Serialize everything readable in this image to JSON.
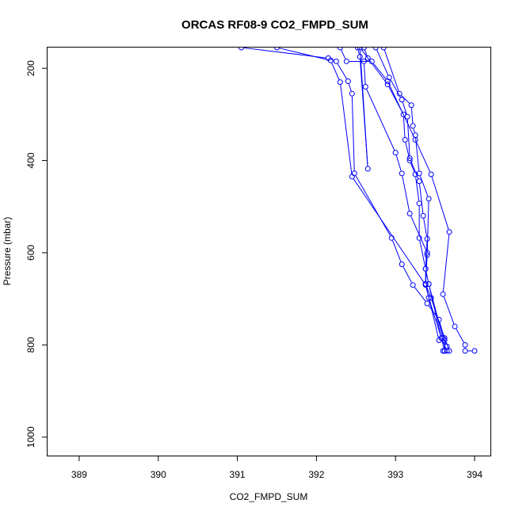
{
  "chart_data": {
    "type": "line",
    "title": "ORCAS RF08-9 CO2_FMPD_SUM",
    "xlabel": "CO2_FMPD_SUM",
    "ylabel": "Pressure (mbar)",
    "xlim": [
      388.6,
      394.2
    ],
    "ylim": [
      1040,
      155
    ],
    "y_inverted": true,
    "x_ticks": [
      389,
      390,
      391,
      392,
      393,
      394
    ],
    "y_ticks": [
      200,
      400,
      600,
      800,
      1000
    ],
    "grid": false,
    "legend": "none",
    "marker": "open-circle",
    "series_color": "#0000ff",
    "series": [
      {
        "values": [
          [
            391.05,
            155
          ],
          [
            392.15,
            178
          ],
          [
            392.25,
            185
          ],
          [
            392.4,
            228
          ],
          [
            392.45,
            255
          ],
          [
            392.48,
            428
          ],
          [
            392.95,
            568
          ],
          [
            393.08,
            625
          ],
          [
            393.22,
            670
          ],
          [
            393.4,
            710
          ],
          [
            393.55,
            745
          ],
          [
            393.62,
            790
          ],
          [
            393.62,
            813
          ],
          [
            393.6,
            813
          ]
        ]
      },
      {
        "values": [
          [
            391.5,
            155
          ],
          [
            392.18,
            183
          ],
          [
            392.3,
            230
          ],
          [
            392.45,
            435
          ],
          [
            393.38,
            670
          ],
          [
            393.42,
            698
          ],
          [
            393.58,
            785
          ],
          [
            393.65,
            813
          ]
        ]
      },
      {
        "values": [
          [
            392.6,
            155
          ],
          [
            392.65,
            178
          ],
          [
            392.6,
            185
          ],
          [
            392.62,
            240
          ],
          [
            393.0,
            383
          ],
          [
            393.08,
            428
          ],
          [
            393.18,
            515
          ],
          [
            393.4,
            600
          ],
          [
            393.38,
            668
          ],
          [
            393.42,
            668
          ],
          [
            393.6,
            785
          ],
          [
            393.65,
            803
          ]
        ]
      },
      {
        "values": [
          [
            392.52,
            155
          ],
          [
            392.55,
            175
          ],
          [
            392.65,
            418
          ],
          [
            392.55,
            155
          ],
          [
            392.9,
            235
          ],
          [
            393.1,
            300
          ],
          [
            393.12,
            355
          ],
          [
            393.18,
            400
          ],
          [
            393.25,
            430
          ],
          [
            393.3,
            493
          ],
          [
            393.3,
            568
          ],
          [
            393.38,
            635
          ],
          [
            393.38,
            668
          ],
          [
            393.45,
            698
          ],
          [
            393.62,
            785
          ],
          [
            393.68,
            813
          ]
        ]
      },
      {
        "values": [
          [
            392.75,
            155
          ],
          [
            392.92,
            220
          ],
          [
            393.08,
            268
          ],
          [
            393.15,
            305
          ],
          [
            393.18,
            395
          ],
          [
            393.3,
            445
          ],
          [
            393.35,
            520
          ],
          [
            393.4,
            570
          ],
          [
            393.38,
            635
          ],
          [
            393.42,
            668
          ],
          [
            393.58,
            785
          ],
          [
            393.62,
            813
          ]
        ]
      },
      {
        "values": [
          [
            392.85,
            155
          ],
          [
            393.05,
            255
          ],
          [
            393.2,
            280
          ],
          [
            393.22,
            325
          ],
          [
            393.25,
            345
          ],
          [
            393.3,
            428
          ],
          [
            393.42,
            483
          ],
          [
            393.4,
            605
          ],
          [
            393.38,
            668
          ],
          [
            393.55,
            790
          ]
        ]
      },
      {
        "values": [
          [
            392.3,
            155
          ],
          [
            392.38,
            185
          ],
          [
            392.7,
            185
          ],
          [
            392.9,
            228
          ],
          [
            393.25,
            355
          ],
          [
            393.45,
            430
          ],
          [
            393.68,
            555
          ],
          [
            393.6,
            690
          ],
          [
            393.75,
            760
          ],
          [
            393.88,
            800
          ],
          [
            393.88,
            813
          ],
          [
            394.0,
            813
          ]
        ]
      }
    ]
  }
}
